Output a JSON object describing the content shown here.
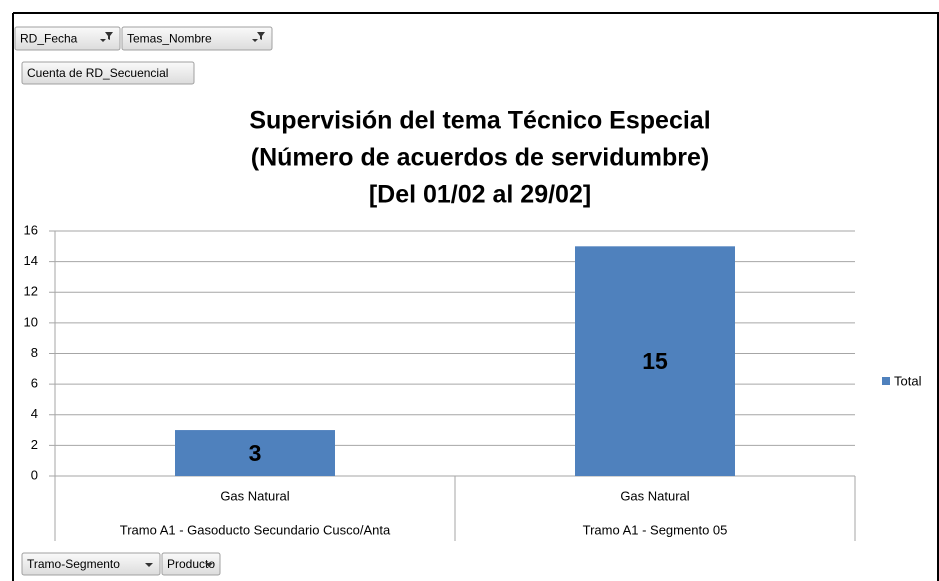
{
  "page_buttons": {
    "filters": [
      "RD_Fecha",
      "Temas_Nombre"
    ],
    "value_field": "Cuenta de RD_Secuencial",
    "axis_fields": [
      "Tramo-Segmento",
      "Producto"
    ]
  },
  "chart_data": {
    "type": "bar",
    "title": [
      "Supervisión del tema Técnico Especial",
      "(Número de acuerdos de servidumbre)",
      "[Del 01/02 al 29/02]"
    ],
    "categories": [
      "Gas Natural",
      "Gas Natural"
    ],
    "category_groups": [
      "Tramo A1 - Gasoducto Secundario Cusco/Anta",
      "Tramo A1 - Segmento 05"
    ],
    "series": [
      {
        "name": "Total",
        "color": "#4f81bd",
        "values": [
          3,
          15
        ]
      }
    ],
    "ylim": [
      0,
      16
    ],
    "yticks": [
      0,
      2,
      4,
      6,
      8,
      10,
      12,
      14,
      16
    ],
    "grid": true,
    "legend": "right"
  }
}
